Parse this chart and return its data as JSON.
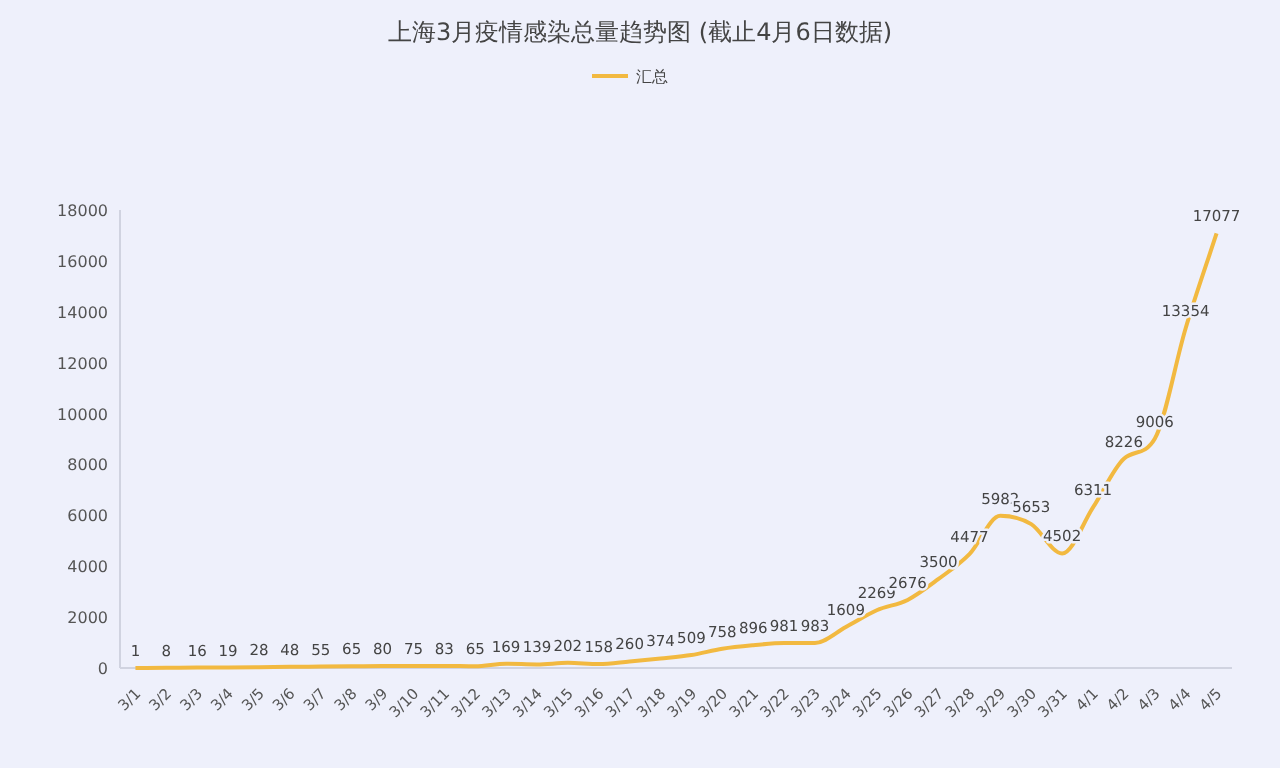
{
  "chart_data": {
    "type": "line",
    "title": "上海3月疫情感染总量趋势图 (截止4月6日数据)",
    "categories": [
      "3/1",
      "3/2",
      "3/3",
      "3/4",
      "3/5",
      "3/6",
      "3/7",
      "3/8",
      "3/9",
      "3/10",
      "3/11",
      "3/12",
      "3/13",
      "3/14",
      "3/15",
      "3/16",
      "3/17",
      "3/18",
      "3/19",
      "3/20",
      "3/21",
      "3/22",
      "3/23",
      "3/24",
      "3/25",
      "3/26",
      "3/27",
      "3/28",
      "3/29",
      "3/30",
      "3/31",
      "4/1",
      "4/2",
      "4/3",
      "4/4",
      "4/5"
    ],
    "series": [
      {
        "name": "汇总",
        "color": "#f2b940",
        "values": [
          1,
          8,
          16,
          19,
          28,
          48,
          55,
          65,
          80,
          75,
          83,
          65,
          169,
          139,
          202,
          158,
          260,
          374,
          509,
          758,
          896,
          981,
          983,
          1609,
          2269,
          2676,
          3500,
          4477,
          5982,
          5653,
          4502,
          6311,
          8226,
          9006,
          13354,
          17077
        ]
      }
    ],
    "ylim": [
      0,
      18000
    ],
    "yticks": [
      0,
      2000,
      4000,
      6000,
      8000,
      10000,
      12000,
      14000,
      16000,
      18000
    ],
    "data_labels": true,
    "legend": "top",
    "grid": false,
    "marker": "none"
  }
}
